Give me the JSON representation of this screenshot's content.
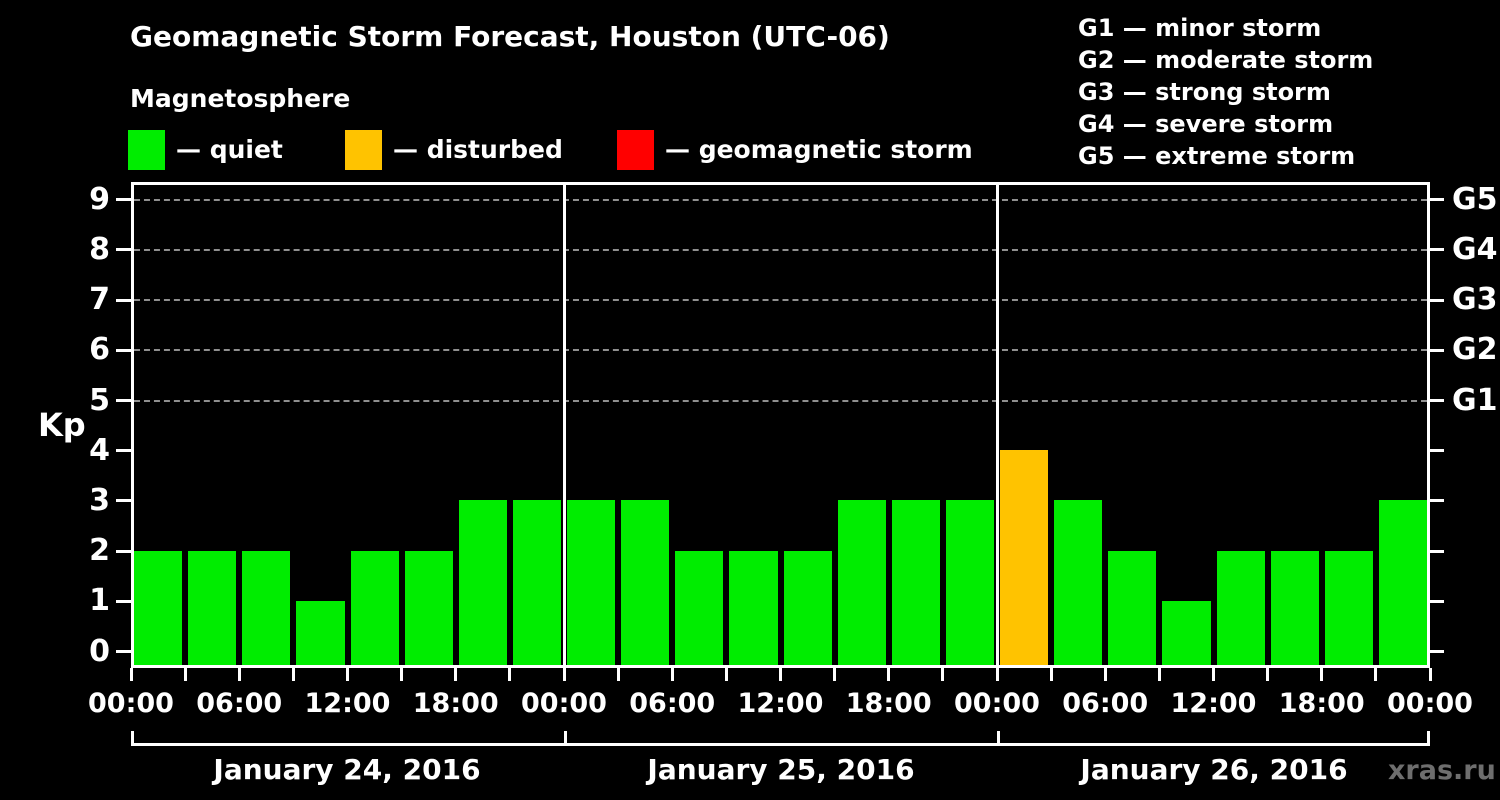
{
  "title": "Geomagnetic Storm Forecast, Houston (UTC-06)",
  "subtitle": "Magnetosphere",
  "legend": {
    "items": [
      {
        "label": "— quiet",
        "color": "#00ED00"
      },
      {
        "label": "— disturbed",
        "color": "#FFC300"
      },
      {
        "label": "— geomagnetic storm",
        "color": "#FF0000"
      }
    ]
  },
  "g_scale_legend": [
    "G1 — minor storm",
    "G2 — moderate storm",
    "G3 — strong storm",
    "G4 — severe storm",
    "G5 — extreme storm"
  ],
  "watermark": "xras.ru",
  "chart_data": {
    "type": "bar",
    "title": "Geomagnetic Storm Forecast, Houston (UTC-06)",
    "subtitle": "Magnetosphere",
    "ylabel": "Kp",
    "ylim": [
      0,
      9
    ],
    "y_ticks": [
      0,
      1,
      2,
      3,
      4,
      5,
      6,
      7,
      8,
      9
    ],
    "gridlines_kp": [
      5,
      6,
      7,
      8,
      9
    ],
    "grid": "dashed horizontal at Kp 5-9 only",
    "right_axis_labels": [
      {
        "kp": 9,
        "label": "G5"
      },
      {
        "kp": 8,
        "label": "G4"
      },
      {
        "kp": 7,
        "label": "G3"
      },
      {
        "kp": 6,
        "label": "G2"
      },
      {
        "kp": 5,
        "label": "G1"
      }
    ],
    "x_tick_labels": [
      "00:00",
      "06:00",
      "12:00",
      "18:00",
      "00:00",
      "06:00",
      "12:00",
      "18:00",
      "00:00",
      "06:00",
      "12:00",
      "18:00",
      "00:00"
    ],
    "hours_per_bar": 3,
    "colors": {
      "quiet": "#00ED00",
      "disturbed": "#FFC300",
      "storm": "#FF0000"
    },
    "days": [
      {
        "date": "January 24, 2016",
        "values": [
          2,
          2,
          2,
          1,
          2,
          2,
          3,
          3
        ],
        "statuses": [
          "quiet",
          "quiet",
          "quiet",
          "quiet",
          "quiet",
          "quiet",
          "quiet",
          "quiet"
        ]
      },
      {
        "date": "January 25, 2016",
        "values": [
          3,
          3,
          2,
          2,
          2,
          3,
          3,
          3
        ],
        "statuses": [
          "quiet",
          "quiet",
          "quiet",
          "quiet",
          "quiet",
          "quiet",
          "quiet",
          "quiet"
        ]
      },
      {
        "date": "January 26, 2016",
        "values": [
          4,
          3,
          2,
          1,
          2,
          2,
          2,
          3
        ],
        "statuses": [
          "disturbed",
          "quiet",
          "quiet",
          "quiet",
          "quiet",
          "quiet",
          "quiet",
          "quiet"
        ]
      }
    ]
  }
}
